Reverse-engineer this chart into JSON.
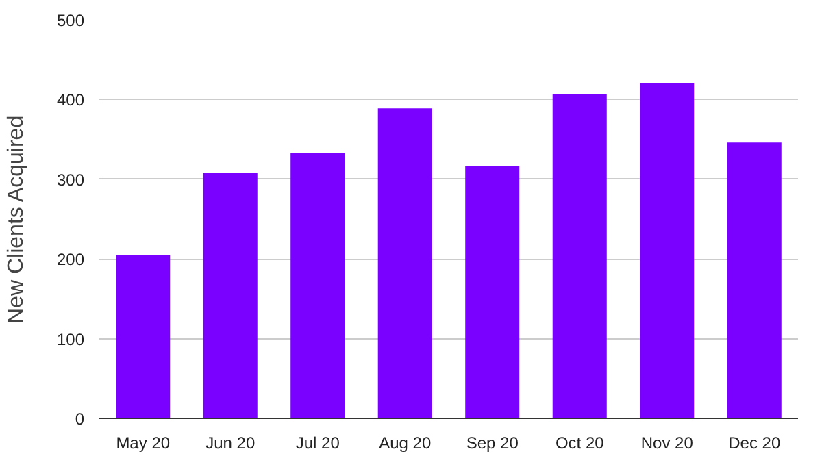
{
  "chart_data": {
    "type": "bar",
    "ylabel": "New Clients Acquired",
    "categories": [
      "May 20",
      "Jun 20",
      "Jul 20",
      "Aug 20",
      "Sep 20",
      "Oct 20",
      "Nov 20",
      "Dec 20"
    ],
    "values": [
      205,
      308,
      333,
      389,
      317,
      407,
      421,
      346
    ],
    "color": "#7a00ff",
    "ylim": [
      0,
      500
    ],
    "yticks": [
      0,
      100,
      200,
      300,
      400,
      500
    ],
    "grid": "y"
  }
}
